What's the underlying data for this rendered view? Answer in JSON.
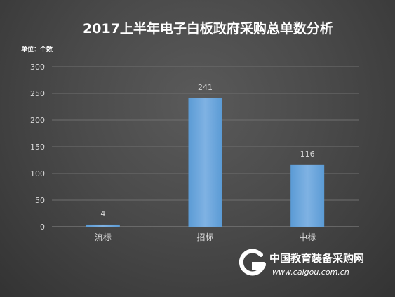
{
  "chart_data": {
    "type": "bar",
    "title": "2017上半年电子白板政府采购总单数分析",
    "unit_label": "单位：个数",
    "categories": [
      "流标",
      "招标",
      "中标"
    ],
    "values": [
      4,
      241,
      116
    ],
    "data_labels": [
      "4",
      "241",
      "116"
    ],
    "ylim": [
      0,
      300
    ],
    "yticks": [
      0,
      50,
      100,
      150,
      200,
      250,
      300
    ],
    "grid": true,
    "legend": "none",
    "colors": {
      "bar": "#5b9bd5",
      "bar_light": "#7fb2e3",
      "grid": "#6f6f6f",
      "text": "#d9d9d9"
    }
  },
  "watermark": {
    "name": "中国教育装备采购网",
    "url": "www.caigou.com.cn",
    "logo_icon": "caigou-logo-icon"
  }
}
